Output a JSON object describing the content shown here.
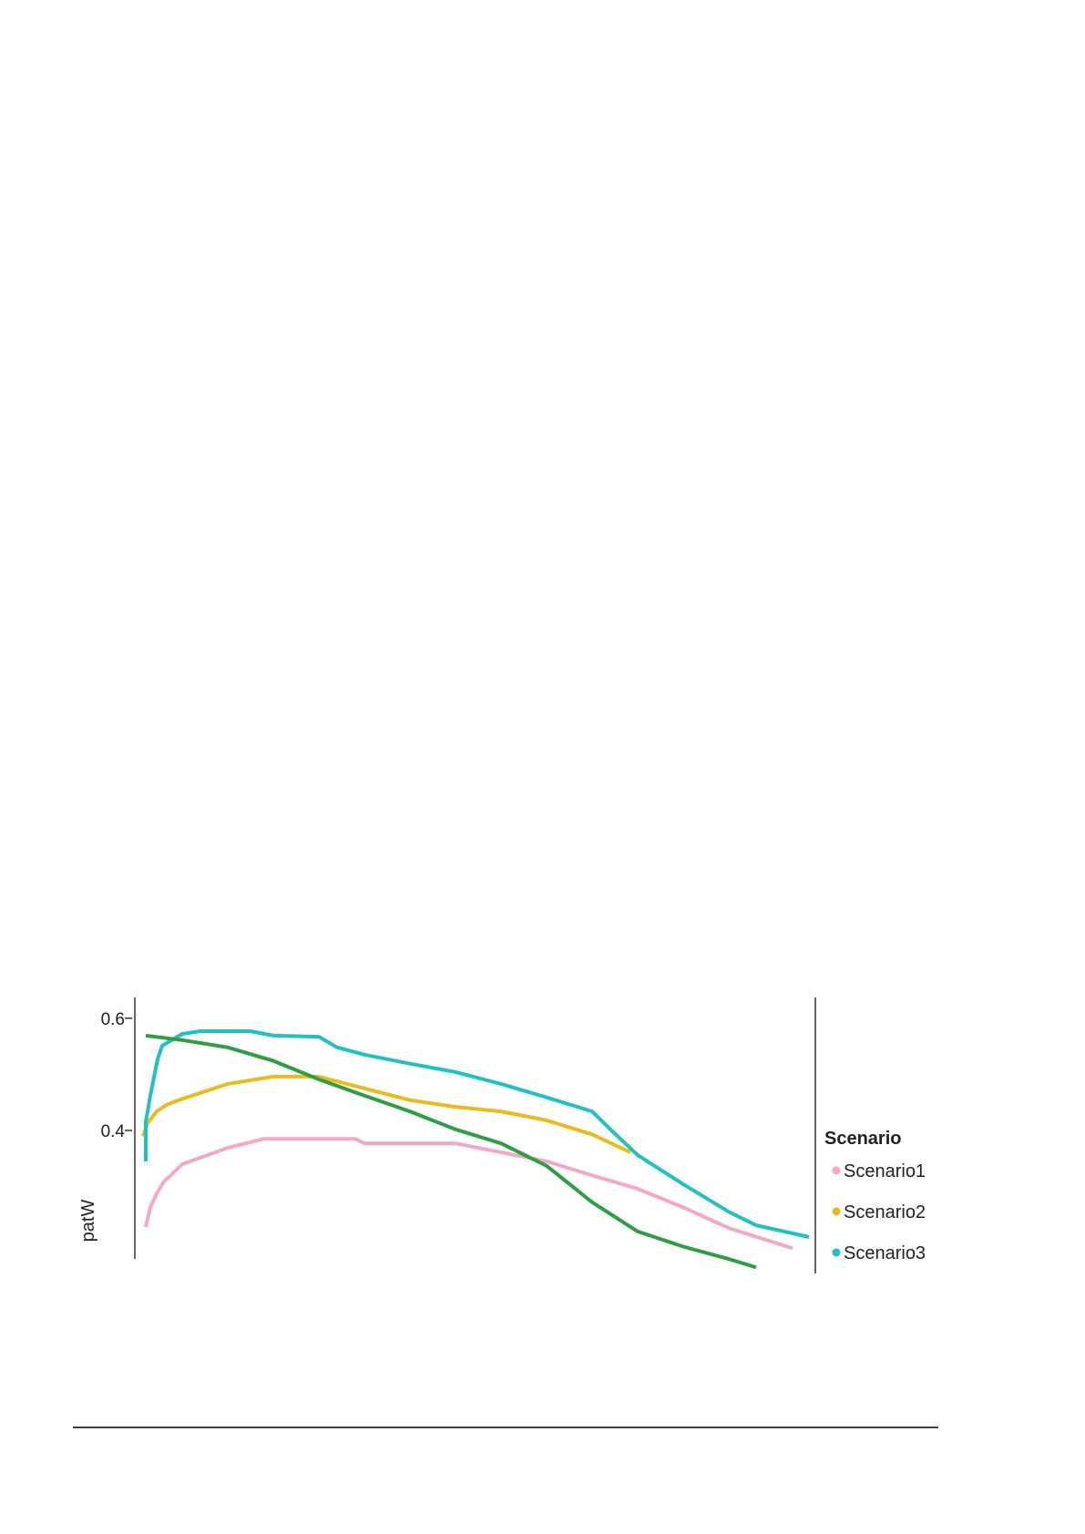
{
  "chart_data": {
    "type": "line",
    "y_label": "patW",
    "legend_title": "Scenario",
    "xlim": [
      0,
      745
    ],
    "ylim": [
      0.15,
      0.637
    ],
    "yticks": [
      0.6,
      0.4
    ],
    "series": [
      {
        "name": "Scenario1",
        "color": "#f4a8c8",
        "x": [
          10,
          15,
          22,
          30,
          40,
          50,
          100,
          140,
          240,
          250,
          350,
          400,
          450,
          500,
          550,
          600,
          650,
          720
        ],
        "values": [
          0.228,
          0.263,
          0.288,
          0.309,
          0.324,
          0.34,
          0.369,
          0.385,
          0.385,
          0.377,
          0.377,
          0.361,
          0.345,
          0.32,
          0.296,
          0.263,
          0.226,
          0.19
        ]
      },
      {
        "name": "Scenario2",
        "color": "#eabb1c",
        "x": [
          7,
          12,
          22,
          33,
          46,
          100,
          150,
          200,
          250,
          300,
          350,
          400,
          450,
          500,
          542
        ],
        "values": [
          0.39,
          0.413,
          0.434,
          0.446,
          0.454,
          0.483,
          0.496,
          0.496,
          0.475,
          0.454,
          0.442,
          0.434,
          0.418,
          0.393,
          0.361
        ]
      },
      {
        "name": "Scenario3",
        "color": "#1fc1c3",
        "x": [
          10,
          10,
          15,
          23,
          28,
          50,
          70,
          125,
          150,
          200,
          220,
          250,
          300,
          350,
          400,
          450,
          500,
          520,
          550,
          600,
          650,
          680,
          738
        ],
        "values": [
          0.345,
          0.415,
          0.462,
          0.527,
          0.551,
          0.572,
          0.577,
          0.577,
          0.569,
          0.567,
          0.548,
          0.535,
          0.519,
          0.504,
          0.483,
          0.459,
          0.434,
          0.402,
          0.356,
          0.304,
          0.255,
          0.231,
          0.21
        ]
      },
      {
        "color": "#2e9e44",
        "x": [
          10,
          50,
          100,
          150,
          200,
          250,
          300,
          350,
          400,
          450,
          500,
          550,
          600,
          650,
          680
        ],
        "values": [
          0.569,
          0.561,
          0.548,
          0.524,
          0.491,
          0.462,
          0.434,
          0.402,
          0.377,
          0.337,
          0.272,
          0.22,
          0.193,
          0.171,
          0.156
        ]
      }
    ]
  }
}
